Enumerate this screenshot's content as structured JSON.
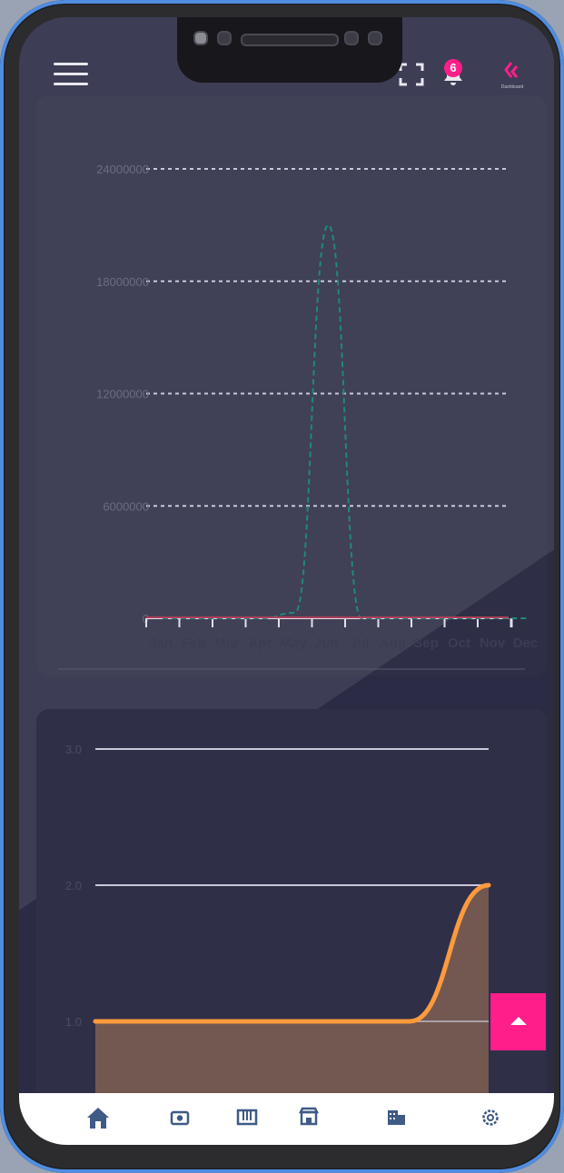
{
  "header": {
    "notification_count": "6",
    "logo_caption": "Dashboard"
  },
  "chart_data": [
    {
      "type": "line",
      "title": "",
      "xlabel": "",
      "ylabel": "",
      "categories": [
        "Jan",
        "Feb",
        "Mar",
        "Apr",
        "May",
        "Jun",
        "Jul",
        "Aug",
        "Sep",
        "Oct",
        "Nov",
        "Dec"
      ],
      "yticks": [
        "0",
        "6000000",
        "12000000",
        "18000000",
        "24000000"
      ],
      "ylim": [
        0,
        24000000
      ],
      "grid": true,
      "series": [
        {
          "values": [
            0,
            0,
            0,
            0,
            300000,
            21000000,
            0,
            0,
            0,
            0,
            0,
            0
          ],
          "color": "#1e8a7a",
          "style": "dashed"
        },
        {
          "values": [
            0,
            0,
            0,
            0,
            0,
            0,
            0,
            0,
            0,
            0,
            0,
            0
          ],
          "color": "#b0405a",
          "style": "solid"
        }
      ]
    },
    {
      "type": "area",
      "title": "",
      "xlabel": "",
      "ylabel": "",
      "yticks": [
        "1.0",
        "2.0",
        "3.0"
      ],
      "ylim": [
        0.5,
        3.0
      ],
      "grid": true,
      "series": [
        {
          "values": [
            1.0,
            1.0,
            1.0,
            1.0,
            1.0,
            2.0
          ],
          "color": "#ff9a3c",
          "fill": "#7a5d52"
        }
      ]
    }
  ],
  "colors": {
    "accent": "#ff1e8a",
    "background": "#2b2b45",
    "panel": "#3d3d55"
  },
  "nav": {
    "items": [
      "home-icon",
      "eye-icon",
      "board-icon",
      "store-icon",
      "buildings-icon",
      "settings-icon"
    ]
  }
}
